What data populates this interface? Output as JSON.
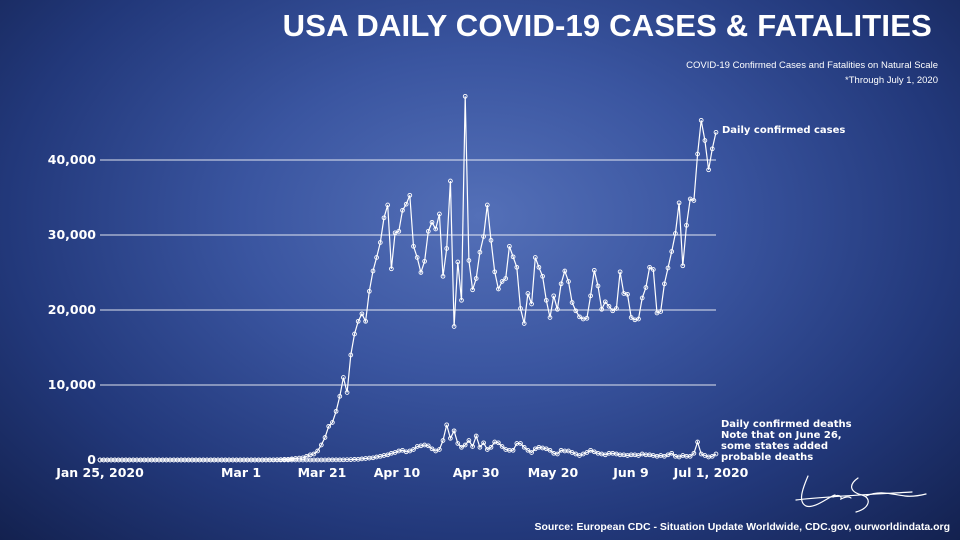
{
  "title": "USA DAILY COVID-19 CASES & FATALITIES",
  "subtitle_lines": [
    "COVID-19 Confirmed Cases and Fatalities on Natural Scale",
    "*Through July 1, 2020"
  ],
  "source": "Source: European CDC - Situation Update Worldwide, CDC.gov, ourworldindata.org",
  "colors": {
    "background": "#2c4690",
    "lines": "#ffffff",
    "grid": "#ffffff"
  },
  "signature": "handwritten signature",
  "chart_data": {
    "type": "line",
    "title": "USA DAILY COVID-19 CASES & FATALITIES",
    "x_start": "Jan 25, 2020",
    "x_end": "Jul 1, 2020",
    "x_tick_labels": [
      "Jan 25, 2020",
      "Mar 1",
      "Mar 21",
      "Apr 10",
      "Apr 30",
      "May 20",
      "Jun 9",
      "Jul 1, 2020"
    ],
    "y_tick_labels": [
      "0",
      "10,000",
      "20,000",
      "30,000",
      "40,000"
    ],
    "ylim": [
      0,
      50000
    ],
    "grid": true,
    "series": [
      {
        "name": "cases",
        "label": "Daily confirmed cases",
        "values": [
          0,
          0,
          0,
          0,
          0,
          0,
          0,
          0,
          0,
          0,
          0,
          0,
          0,
          0,
          0,
          0,
          0,
          0,
          0,
          0,
          0,
          0,
          0,
          0,
          0,
          0,
          0,
          0,
          0,
          0,
          0,
          0,
          0,
          0,
          0,
          0,
          0,
          0,
          0,
          0,
          0,
          0,
          0,
          0,
          0,
          10,
          20,
          30,
          40,
          60,
          80,
          100,
          150,
          200,
          250,
          300,
          500,
          700,
          800,
          1200,
          2000,
          3000,
          4500,
          5000,
          6500,
          8500,
          11000,
          9000,
          14000,
          16800,
          18500,
          19500,
          18500,
          22500,
          25200,
          27000,
          29000,
          32300,
          34000,
          25500,
          30300,
          30500,
          33300,
          34100,
          35300,
          28500,
          27000,
          25000,
          26500,
          30500,
          31700,
          30800,
          32800,
          24500,
          28200,
          37200,
          17800,
          26400,
          21300,
          48500,
          26600,
          22700,
          24200,
          27700,
          29800,
          34000,
          29300,
          25100,
          22800,
          23800,
          24200,
          28500,
          27100,
          25700,
          20200,
          18200,
          22200,
          20800,
          27000,
          25700,
          24500,
          21300,
          19000,
          21900,
          20100,
          23500,
          25200,
          23800,
          21000,
          19900,
          19100,
          18800,
          18900,
          21900,
          25300,
          23200,
          20100,
          21100,
          20500,
          19900,
          20200,
          25100,
          22200,
          22100,
          19000,
          18700,
          18800,
          21600,
          23000,
          25700,
          25400,
          19600,
          19800,
          23500,
          25600,
          27800,
          30200,
          34300,
          25900,
          31300,
          34800,
          34600,
          40800,
          45300,
          42600,
          38700,
          41500,
          43700
        ]
      },
      {
        "name": "deaths",
        "label": "Daily confirmed deaths",
        "values": [
          0,
          0,
          0,
          0,
          0,
          0,
          0,
          0,
          0,
          0,
          0,
          0,
          0,
          0,
          0,
          0,
          0,
          0,
          0,
          0,
          0,
          0,
          0,
          0,
          0,
          0,
          0,
          0,
          0,
          0,
          0,
          0,
          0,
          0,
          0,
          0,
          0,
          0,
          0,
          0,
          0,
          0,
          0,
          0,
          0,
          0,
          0,
          0,
          0,
          0,
          0,
          0,
          0,
          0,
          0,
          0,
          0,
          0,
          0,
          1,
          2,
          5,
          8,
          10,
          15,
          20,
          30,
          40,
          60,
          80,
          100,
          150,
          200,
          250,
          300,
          400,
          500,
          600,
          700,
          900,
          1000,
          1200,
          1300,
          1100,
          1200,
          1400,
          1800,
          1900,
          2000,
          1900,
          1500,
          1200,
          1400,
          2600,
          4700,
          2900,
          3900,
          2200,
          1700,
          2000,
          2600,
          1800,
          3200,
          1700,
          2300,
          1400,
          1700,
          2400,
          2300,
          1800,
          1400,
          1300,
          1300,
          2200,
          2200,
          1700,
          1300,
          1000,
          1500,
          1700,
          1600,
          1500,
          1300,
          900,
          800,
          1300,
          1200,
          1200,
          1000,
          800,
          600,
          800,
          1000,
          1300,
          1100,
          900,
          800,
          700,
          900,
          900,
          800,
          700,
          700,
          600,
          700,
          700,
          600,
          800,
          700,
          700,
          600,
          500,
          600,
          500,
          700,
          900,
          500,
          400,
          600,
          500,
          500,
          900,
          2400,
          800,
          600,
          400,
          500,
          800
        ]
      }
    ],
    "annotations": [
      "Daily confirmed cases",
      "Daily confirmed deaths",
      "Note that on June 26,",
      "some states added",
      "probable deaths"
    ]
  }
}
